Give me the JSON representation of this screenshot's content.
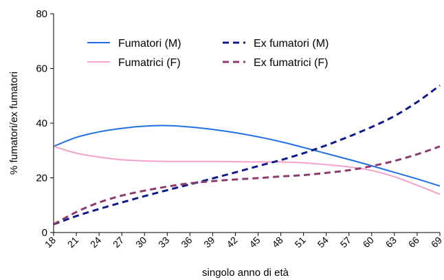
{
  "chart_data": {
    "type": "line",
    "title": "",
    "xlabel": "singolo anno di età",
    "ylabel": "% fumatori/ex fumatori",
    "ylim": [
      0,
      80
    ],
    "yticks": [
      "0",
      "20",
      "40",
      "60",
      "80"
    ],
    "grid": false,
    "legend_position": "top-center",
    "x": [
      18,
      21,
      24,
      27,
      30,
      33,
      36,
      39,
      42,
      45,
      48,
      51,
      54,
      57,
      60,
      63,
      66,
      69
    ],
    "series": [
      {
        "name": "Fumatori (M)",
        "style": "solid",
        "color": "#1f6fe6",
        "values": [
          31.5,
          34.8,
          36.8,
          38.1,
          38.9,
          39.1,
          38.6,
          37.7,
          36.5,
          35.0,
          33.2,
          31.1,
          28.9,
          26.7,
          24.4,
          22.0,
          19.6,
          17.0
        ]
      },
      {
        "name": "Fumatrici (F)",
        "style": "solid",
        "color": "#f4a0c8",
        "values": [
          31.5,
          29.0,
          27.6,
          26.6,
          26.2,
          26.0,
          26.0,
          26.0,
          25.9,
          25.8,
          25.8,
          25.5,
          24.8,
          24.0,
          22.7,
          20.4,
          17.3,
          14.0
        ]
      },
      {
        "name": "Ex fumatori (M)",
        "style": "dashed",
        "color": "#0d1a8c",
        "values": [
          3.0,
          6.0,
          8.6,
          11.0,
          13.3,
          15.5,
          17.6,
          19.8,
          22.0,
          24.3,
          26.5,
          29.0,
          31.9,
          35.1,
          38.6,
          42.6,
          47.7,
          53.8
        ]
      },
      {
        "name": "Ex fumatrici (F)",
        "style": "dashed",
        "color": "#8e3a6e",
        "values": [
          3.0,
          7.5,
          11.0,
          13.5,
          15.3,
          16.8,
          18.0,
          18.8,
          19.4,
          19.9,
          20.5,
          21.0,
          21.8,
          22.8,
          24.3,
          26.2,
          28.6,
          31.5
        ]
      }
    ]
  }
}
